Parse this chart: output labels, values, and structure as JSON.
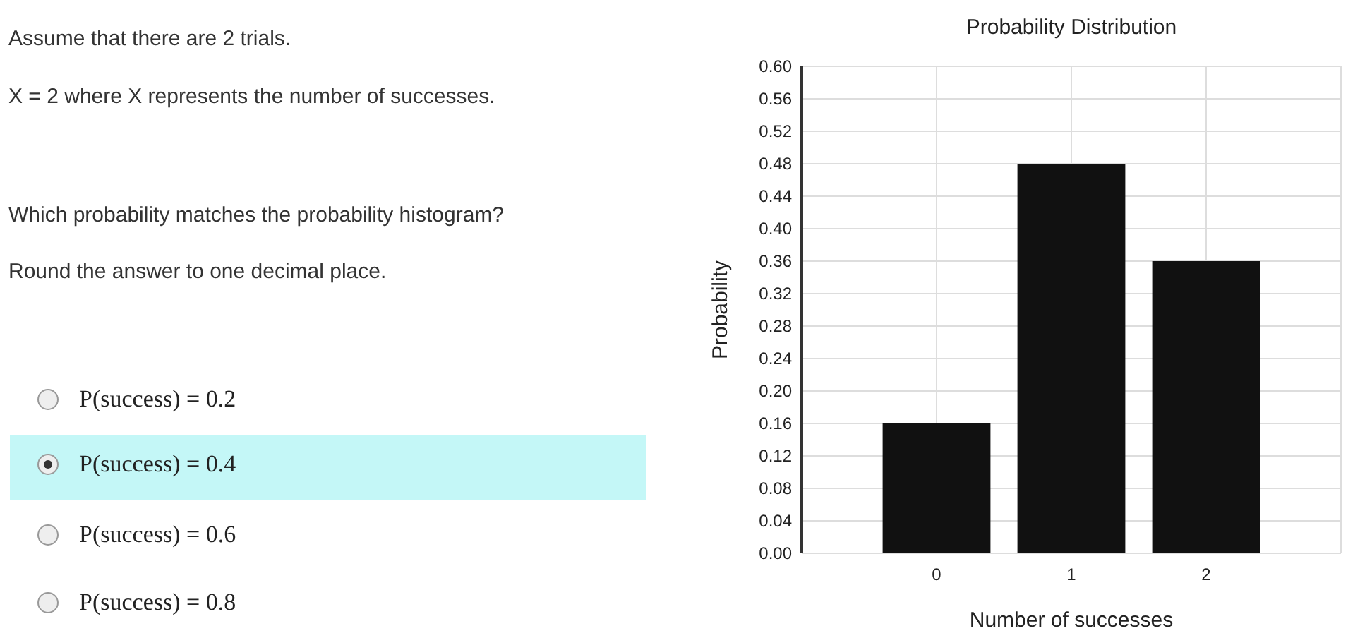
{
  "chart_data": {
    "type": "bar",
    "title": "Probability Distribution",
    "xlabel": "Number of successes",
    "ylabel": "Probability",
    "categories": [
      "0",
      "1",
      "2"
    ],
    "values": [
      0.16,
      0.48,
      0.36
    ],
    "color": "#111111",
    "ylim": [
      0,
      0.6
    ],
    "yticks": [
      {
        "value": 0,
        "label": "0.00"
      },
      {
        "value": 0.04,
        "label": "0.04"
      },
      {
        "value": 0.08,
        "label": "0.08"
      },
      {
        "value": 0.12,
        "label": "0.12"
      },
      {
        "value": 0.16,
        "label": "0.16"
      },
      {
        "value": 0.2,
        "label": "0.20"
      },
      {
        "value": 0.24,
        "label": "0.24"
      },
      {
        "value": 0.28,
        "label": "0.28"
      },
      {
        "value": 0.32,
        "label": "0.32"
      },
      {
        "value": 0.36,
        "label": "0.36"
      },
      {
        "value": 0.4,
        "label": "0.40"
      },
      {
        "value": 0.44,
        "label": "0.44"
      },
      {
        "value": 0.48,
        "label": "0.48"
      },
      {
        "value": 0.52,
        "label": "0.52"
      },
      {
        "value": 0.56,
        "label": "0.56"
      },
      {
        "value": 0.6,
        "label": "0.60"
      }
    ],
    "grid": true,
    "annotations": [
      "Assume that there are 2 trials.",
      "X = 2 where X represents the number of successes.",
      "Which probability matches the probability histogram?",
      "Round the answer to one decimal place.",
      "P(success) = 0.2",
      "P(success) = 0.4",
      "P(success) = 0.6",
      "P(success) = 0.8"
    ]
  }
}
